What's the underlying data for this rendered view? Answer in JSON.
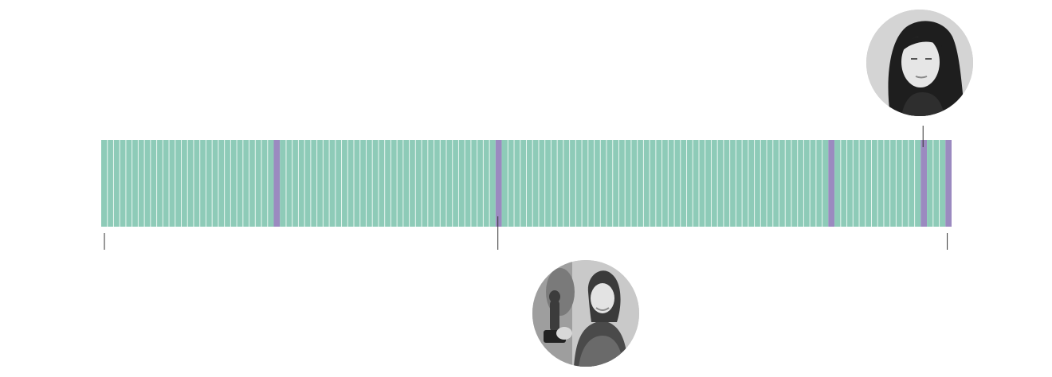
{
  "chart_data": {
    "type": "bar",
    "orientation": "horizontal-strip",
    "segment_count": 138,
    "highlighted_indices": [
      28,
      64,
      118,
      133,
      137
    ],
    "colors": {
      "default": "#8ecbb8",
      "highlighted": "#9b8ac0",
      "divider": "#e9f6f1",
      "tick": "#333333"
    },
    "ticks": [
      {
        "index": 0,
        "side": "bottom"
      },
      {
        "index": 64,
        "side": "bottom"
      },
      {
        "index": 137,
        "side": "bottom"
      },
      {
        "index": 133,
        "side": "top"
      }
    ],
    "annotations": [
      {
        "index": 64,
        "side": "bottom",
        "image": "portrait-photo-woman-holding-award"
      },
      {
        "index": 133,
        "side": "top",
        "image": "portrait-photo-woman-dark-hair"
      }
    ],
    "grid": false,
    "legend": "none"
  }
}
